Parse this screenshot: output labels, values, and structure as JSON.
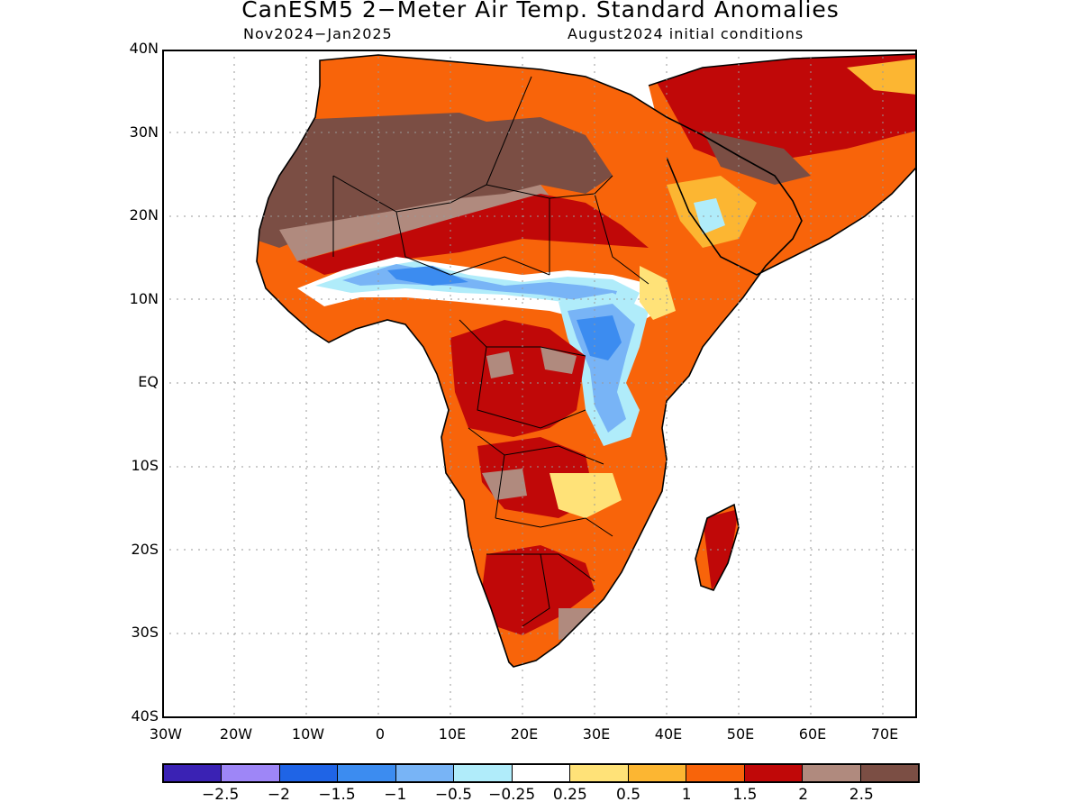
{
  "title": "CanESM5 2−Meter Air Temp. Standard Anomalies",
  "subtitle_left": "Nov2024−Jan2025",
  "subtitle_right": "August2024 initial conditions",
  "lat_labels": [
    "40N",
    "30N",
    "20N",
    "10N",
    "EQ",
    "10S",
    "20S",
    "30S",
    "40S"
  ],
  "lon_labels": [
    "30W",
    "20W",
    "10W",
    "0",
    "10E",
    "20E",
    "30E",
    "40E",
    "50E",
    "60E",
    "70E"
  ],
  "colorbar": {
    "colors": [
      "#3a22b4",
      "#9e86f7",
      "#1f64e6",
      "#3c8cf0",
      "#78b4f6",
      "#b0ecfa",
      "#ffffff",
      "#ffe278",
      "#fcb632",
      "#f8640a",
      "#c00808",
      "#b08a7e",
      "#7b4e44"
    ],
    "labels": [
      "−2.5",
      "−2",
      "−1.5",
      "−1",
      "−0.5",
      "−0.25",
      "0.25",
      "0.5",
      "1",
      "1.5",
      "2",
      "2.5"
    ]
  },
  "map": {
    "region": "Africa",
    "lon_range": [
      -30,
      75
    ],
    "lat_range": [
      -40,
      40
    ],
    "gridlines": "dotted"
  }
}
